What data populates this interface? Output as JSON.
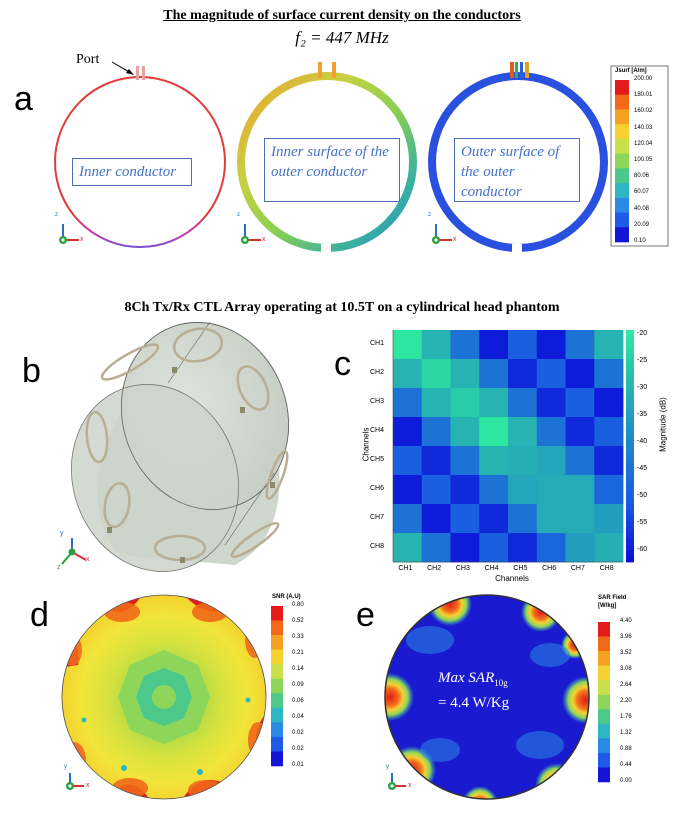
{
  "title": "The magnitude of surface current density on the conductors",
  "frequency": "f₂ = 447 MHz",
  "port_label": "Port",
  "panels": {
    "a": "a",
    "b": "b",
    "c": "c",
    "d": "d",
    "e": "e"
  },
  "conductor_labels": [
    "Inner conductor",
    "Inner surface of the outer conductor",
    "Outer surface of the outer conductor"
  ],
  "jsurf_legend": {
    "title": "Jsurf [A/m]",
    "ticks": [
      "200.00",
      "180.01",
      "160.02",
      "140.03",
      "120.04",
      "100.05",
      "80.06",
      "60.07",
      "40.08",
      "20.09",
      "0.10"
    ],
    "colors": [
      "#e51a1a",
      "#f06a1a",
      "#f3a321",
      "#f5d133",
      "#c9e04a",
      "#8dd65a",
      "#4bc88a",
      "#2fb6c4",
      "#2a8be6",
      "#1f5be8",
      "#1414d8"
    ]
  },
  "array_title": "8Ch Tx/Rx CTL Array operating at 10.5T on a cylindrical head phantom",
  "axis_labels": {
    "x": "x",
    "y": "y",
    "z": "z"
  },
  "chart_data": {
    "type": "heatmap",
    "title": "",
    "xlabel": "Channels",
    "ylabel": "Channels",
    "colorbar_label": "Magnitude (dB)",
    "colorbar_range": [
      -62,
      -19
    ],
    "colorbar_ticks": [
      "-20",
      "-25",
      "-30",
      "-35",
      "-40",
      "-45",
      "-50",
      "-55",
      "-60"
    ],
    "x_categories": [
      "CH1",
      "CH2",
      "CH3",
      "CH4",
      "CH5",
      "CH6",
      "CH7",
      "CH8"
    ],
    "y_categories": [
      "CH1",
      "CH2",
      "CH3",
      "CH4",
      "CH5",
      "CH6",
      "CH7",
      "CH8"
    ],
    "values": [
      [
        -20,
        -30,
        -45,
        -60,
        -50,
        -60,
        -45,
        -30
      ],
      [
        -30,
        -23,
        -30,
        -45,
        -58,
        -50,
        -60,
        -45
      ],
      [
        -45,
        -30,
        -25,
        -30,
        -45,
        -58,
        -50,
        -60
      ],
      [
        -60,
        -45,
        -30,
        -20,
        -30,
        -45,
        -58,
        -50
      ],
      [
        -50,
        -58,
        -45,
        -30,
        -31,
        -33,
        -45,
        -58
      ],
      [
        -60,
        -50,
        -58,
        -45,
        -33,
        -32,
        -32,
        -48
      ],
      [
        -45,
        -60,
        -50,
        -58,
        -45,
        -32,
        -32,
        -35
      ],
      [
        -30,
        -45,
        -60,
        -50,
        -58,
        -48,
        -35,
        -31
      ]
    ]
  },
  "snr_legend": {
    "title": "SNR (A.U)",
    "ticks": [
      "0.80",
      "0.52",
      "0.33",
      "0.21",
      "0.14",
      "0.09",
      "0.06",
      "0.04",
      "0.02",
      "0.02",
      "0.01"
    ],
    "colors": [
      "#e51a1a",
      "#f06a1a",
      "#f3a321",
      "#f5d133",
      "#c9e04a",
      "#8dd65a",
      "#4bc88a",
      "#2fb6c4",
      "#2a8be6",
      "#1f5be8",
      "#1414d8"
    ]
  },
  "sar_legend": {
    "title": "SAR Field [W/kg]",
    "ticks": [
      "4.40",
      "3.96",
      "3.52",
      "3.08",
      "2.64",
      "2.20",
      "1.76",
      "1.32",
      "0.88",
      "0.44",
      "0.00"
    ],
    "colors": [
      "#e51a1a",
      "#f06a1a",
      "#f3a321",
      "#f5d133",
      "#c9e04a",
      "#8dd65a",
      "#4bc88a",
      "#2fb6c4",
      "#2a8be6",
      "#1f5be8",
      "#1414d8"
    ]
  },
  "sar_annotation": {
    "line1": "Max SAR",
    "sub": "10g",
    "line2": "= 4.4 W/Kg"
  }
}
